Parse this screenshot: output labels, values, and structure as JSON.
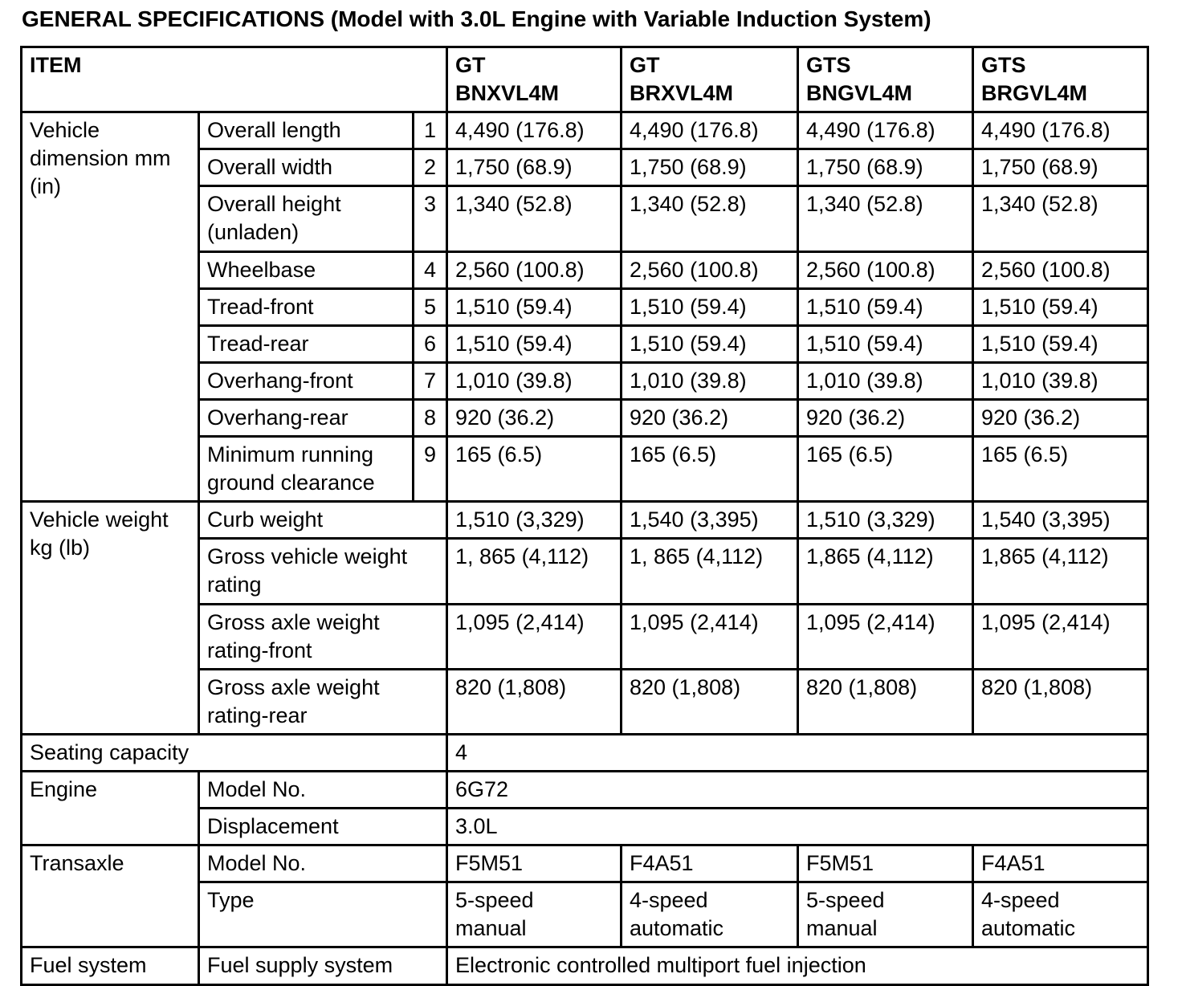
{
  "page": {
    "title": "GENERAL SPECIFICATIONS (Model with 3.0L Engine with Variable Induction System)"
  },
  "colors": {
    "background": "#ffffff",
    "ink": "#000000",
    "grid": "#000000"
  },
  "table": {
    "header": [
      {
        "t": "ITEM",
        "cs": 3
      },
      {
        "t": "GT\nBNXVL4M"
      },
      {
        "t": "GT\nBRXVL4M"
      },
      {
        "t": "GTS\nBNGVL4M"
      },
      {
        "t": "GTS\nBRGVL4M"
      }
    ],
    "rows": [
      [
        {
          "t": "Vehicle\ndimension mm\n(in)",
          "rs": 9,
          "n": "row-group-label"
        },
        {
          "t": "Overall length",
          "n": "item-label"
        },
        {
          "t": "1",
          "al": "c",
          "n": "item-number"
        },
        {
          "t": "4,490 (176.8)",
          "n": "value-cell"
        },
        {
          "t": "4,490 (176.8)",
          "n": "value-cell"
        },
        {
          "t": "4,490 (176.8)",
          "n": "value-cell"
        },
        {
          "t": "4,490 (176.8)",
          "n": "value-cell"
        }
      ],
      [
        {
          "t": "Overall width",
          "n": "item-label"
        },
        {
          "t": "2",
          "al": "c",
          "n": "item-number"
        },
        {
          "t": "1,750 (68.9)",
          "n": "value-cell"
        },
        {
          "t": "1,750 (68.9)",
          "n": "value-cell"
        },
        {
          "t": "1,750 (68.9)",
          "n": "value-cell"
        },
        {
          "t": "1,750 (68.9)",
          "n": "value-cell"
        }
      ],
      [
        {
          "t": "Overall height\n(unladen)",
          "n": "item-label"
        },
        {
          "t": "3",
          "al": "c",
          "n": "item-number"
        },
        {
          "t": "1,340 (52.8)",
          "n": "value-cell"
        },
        {
          "t": "1,340 (52.8)",
          "n": "value-cell"
        },
        {
          "t": "1,340 (52.8)",
          "n": "value-cell"
        },
        {
          "t": "1,340 (52.8)",
          "n": "value-cell"
        }
      ],
      [
        {
          "t": "Wheelbase",
          "n": "item-label"
        },
        {
          "t": "4",
          "al": "c",
          "n": "item-number"
        },
        {
          "t": "2,560 (100.8)",
          "n": "value-cell"
        },
        {
          "t": "2,560 (100.8)",
          "n": "value-cell"
        },
        {
          "t": "2,560 (100.8)",
          "n": "value-cell"
        },
        {
          "t": "2,560 (100.8)",
          "n": "value-cell"
        }
      ],
      [
        {
          "t": "Tread-front",
          "n": "item-label"
        },
        {
          "t": "5",
          "al": "c",
          "n": "item-number"
        },
        {
          "t": "1,510 (59.4)",
          "n": "value-cell"
        },
        {
          "t": "1,510 (59.4)",
          "n": "value-cell"
        },
        {
          "t": "1,510 (59.4)",
          "n": "value-cell"
        },
        {
          "t": "1,510 (59.4)",
          "n": "value-cell"
        }
      ],
      [
        {
          "t": "Tread-rear",
          "n": "item-label"
        },
        {
          "t": "6",
          "al": "c",
          "n": "item-number"
        },
        {
          "t": "1,510 (59.4)",
          "n": "value-cell"
        },
        {
          "t": "1,510 (59.4)",
          "n": "value-cell"
        },
        {
          "t": "1,510 (59.4)",
          "n": "value-cell"
        },
        {
          "t": "1,510 (59.4)",
          "n": "value-cell"
        }
      ],
      [
        {
          "t": "Overhang-front",
          "n": "item-label"
        },
        {
          "t": "7",
          "al": "c",
          "n": "item-number"
        },
        {
          "t": "1,010 (39.8)",
          "n": "value-cell"
        },
        {
          "t": "1,010 (39.8)",
          "n": "value-cell"
        },
        {
          "t": "1,010 (39.8)",
          "n": "value-cell"
        },
        {
          "t": "1,010 (39.8)",
          "n": "value-cell"
        }
      ],
      [
        {
          "t": "Overhang-rear",
          "n": "item-label"
        },
        {
          "t": "8",
          "al": "c",
          "n": "item-number"
        },
        {
          "t": "920 (36.2)",
          "n": "value-cell"
        },
        {
          "t": "920 (36.2)",
          "n": "value-cell"
        },
        {
          "t": "920 (36.2)",
          "n": "value-cell"
        },
        {
          "t": "920 (36.2)",
          "n": "value-cell"
        }
      ],
      [
        {
          "t": "Minimum running\nground clearance",
          "n": "item-label"
        },
        {
          "t": "9",
          "al": "c",
          "n": "item-number"
        },
        {
          "t": "165 (6.5)",
          "n": "value-cell"
        },
        {
          "t": "165 (6.5)",
          "n": "value-cell"
        },
        {
          "t": "165 (6.5)",
          "n": "value-cell"
        },
        {
          "t": "165 (6.5)",
          "n": "value-cell"
        }
      ],
      [
        {
          "t": "Vehicle weight\nkg (lb)",
          "rs": 4,
          "n": "row-group-label"
        },
        {
          "t": "Curb weight",
          "cs": 2,
          "n": "item-label"
        },
        {
          "t": "1,510 (3,329)",
          "n": "value-cell"
        },
        {
          "t": "1,540 (3,395)",
          "n": "value-cell"
        },
        {
          "t": "1,510 (3,329)",
          "n": "value-cell"
        },
        {
          "t": "1,540 (3,395)",
          "n": "value-cell"
        }
      ],
      [
        {
          "t": "Gross vehicle weight\nrating",
          "cs": 2,
          "n": "item-label"
        },
        {
          "t": "1, 865 (4,112)",
          "n": "value-cell"
        },
        {
          "t": "1, 865 (4,112)",
          "n": "value-cell"
        },
        {
          "t": "1,865 (4,112)",
          "n": "value-cell"
        },
        {
          "t": "1,865 (4,112)",
          "n": "value-cell"
        }
      ],
      [
        {
          "t": "Gross axle weight\nrating-front",
          "cs": 2,
          "n": "item-label"
        },
        {
          "t": "1,095 (2,414)",
          "n": "value-cell"
        },
        {
          "t": "1,095 (2,414)",
          "n": "value-cell"
        },
        {
          "t": "1,095 (2,414)",
          "n": "value-cell"
        },
        {
          "t": "1,095 (2,414)",
          "n": "value-cell"
        }
      ],
      [
        {
          "t": "Gross axle weight\nrating-rear",
          "cs": 2,
          "n": "item-label"
        },
        {
          "t": "820 (1,808)",
          "n": "value-cell"
        },
        {
          "t": "820 (1,808)",
          "n": "value-cell"
        },
        {
          "t": "820 (1,808)",
          "n": "value-cell"
        },
        {
          "t": "820 (1,808)",
          "n": "value-cell"
        }
      ],
      [
        {
          "t": "Seating capacity",
          "cs": 3,
          "n": "row-group-label"
        },
        {
          "t": "4",
          "cs": 4,
          "n": "value-cell"
        }
      ],
      [
        {
          "t": "Engine",
          "rs": 2,
          "n": "row-group-label"
        },
        {
          "t": "Model No.",
          "cs": 2,
          "n": "item-label"
        },
        {
          "t": "6G72",
          "cs": 4,
          "n": "value-cell"
        }
      ],
      [
        {
          "t": "Displacement",
          "cs": 2,
          "n": "item-label"
        },
        {
          "t": "3.0L",
          "cs": 4,
          "n": "value-cell"
        }
      ],
      [
        {
          "t": "Transaxle",
          "rs": 2,
          "n": "row-group-label"
        },
        {
          "t": "Model No.",
          "cs": 2,
          "n": "item-label"
        },
        {
          "t": "F5M51",
          "n": "value-cell"
        },
        {
          "t": "F4A51",
          "n": "value-cell"
        },
        {
          "t": "F5M51",
          "n": "value-cell"
        },
        {
          "t": "F4A51",
          "n": "value-cell"
        }
      ],
      [
        {
          "t": "Type",
          "cs": 2,
          "n": "item-label"
        },
        {
          "t": "5-speed\nmanual",
          "n": "value-cell"
        },
        {
          "t": "4-speed\nautomatic",
          "n": "value-cell"
        },
        {
          "t": "5-speed\nmanual",
          "n": "value-cell"
        },
        {
          "t": "4-speed\nautomatic",
          "n": "value-cell"
        }
      ],
      [
        {
          "t": "Fuel system",
          "n": "row-group-label"
        },
        {
          "t": "Fuel supply system",
          "cs": 2,
          "n": "item-label"
        },
        {
          "t": "Electronic controlled multiport fuel injection",
          "cs": 4,
          "n": "value-cell"
        }
      ]
    ]
  }
}
